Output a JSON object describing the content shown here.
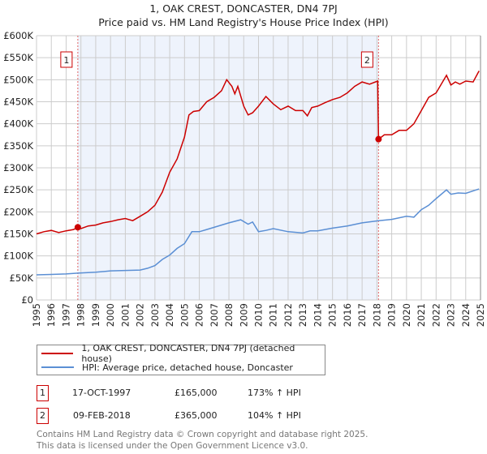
{
  "chart_data": {
    "type": "line",
    "title": "1, OAK CREST, DONCASTER, DN4 7PJ",
    "subtitle": "Price paid vs. HM Land Registry's House Price Index (HPI)",
    "xlabel": "",
    "ylabel": "",
    "xlim": [
      1995,
      2025
    ],
    "ylim": [
      0,
      600000
    ],
    "grid": true,
    "y_ticks": [
      0,
      50000,
      100000,
      150000,
      200000,
      250000,
      300000,
      350000,
      400000,
      450000,
      500000,
      550000,
      600000
    ],
    "y_tick_labels": [
      "£0",
      "£50K",
      "£100K",
      "£150K",
      "£200K",
      "£250K",
      "£300K",
      "£350K",
      "£400K",
      "£450K",
      "£500K",
      "£550K",
      "£600K"
    ],
    "x_ticks": [
      "1995",
      "1996",
      "1997",
      "1998",
      "1999",
      "2000",
      "2001",
      "2002",
      "2003",
      "2004",
      "2005",
      "2006",
      "2007",
      "2008",
      "2009",
      "2010",
      "2011",
      "2012",
      "2013",
      "2014",
      "2015",
      "2016",
      "2017",
      "2018",
      "2019",
      "2020",
      "2021",
      "2022",
      "2023",
      "2024",
      "2025"
    ],
    "shaded_range": [
      1997.79,
      2018.11
    ],
    "series": [
      {
        "name": "1, OAK CREST, DONCASTER, DN4 7PJ (detached house)",
        "color": "#cc0000",
        "x": [
          1995,
          1995.5,
          1996,
          1996.5,
          1997,
          1997.5,
          1997.79,
          1998,
          1998.5,
          1999,
          1999.5,
          2000,
          2000.5,
          2001,
          2001.5,
          2002,
          2002.5,
          2003,
          2003.5,
          2004,
          2004.5,
          2005,
          2005.3,
          2005.6,
          2006,
          2006.5,
          2007,
          2007.5,
          2007.85,
          2008.2,
          2008.4,
          2008.6,
          2009.0,
          2009.3,
          2009.6,
          2010,
          2010.5,
          2011,
          2011.5,
          2012,
          2012.5,
          2013,
          2013.3,
          2013.6,
          2014,
          2014.5,
          2015,
          2015.5,
          2016,
          2016.5,
          2017,
          2017.5,
          2018.05,
          2018.11,
          2018.5,
          2019,
          2019.5,
          2020,
          2020.5,
          2021,
          2021.5,
          2022,
          2022.7,
          2023,
          2023.3,
          2023.6,
          2024,
          2024.5,
          2024.9
        ],
        "y": [
          150000,
          155000,
          158000,
          153000,
          157000,
          160000,
          165000,
          162000,
          168000,
          170000,
          175000,
          178000,
          182000,
          185000,
          180000,
          190000,
          200000,
          215000,
          245000,
          290000,
          320000,
          370000,
          420000,
          428000,
          430000,
          450000,
          460000,
          475000,
          500000,
          485000,
          468000,
          485000,
          440000,
          420000,
          425000,
          440000,
          462000,
          445000,
          432000,
          440000,
          430000,
          430000,
          418000,
          437000,
          440000,
          448000,
          455000,
          460000,
          470000,
          485000,
          495000,
          490000,
          497000,
          365000,
          375000,
          375000,
          385000,
          385000,
          400000,
          430000,
          460000,
          470000,
          510000,
          488000,
          495000,
          490000,
          497000,
          495000,
          520000
        ]
      },
      {
        "name": "HPI: Average price, detached house, Doncaster",
        "color": "#5b8fd4",
        "x": [
          1995,
          1996,
          1997,
          1997.79,
          1999,
          2000,
          2001,
          2002,
          2002.5,
          2003,
          2003.5,
          2004,
          2004.5,
          2005,
          2005.5,
          2006,
          2006.5,
          2007,
          2007.5,
          2008,
          2008.8,
          2009.3,
          2009.6,
          2010,
          2010.5,
          2011,
          2012,
          2013,
          2013.5,
          2014,
          2015,
          2016,
          2017,
          2018.11,
          2019,
          2020,
          2020.5,
          2021,
          2021.5,
          2022,
          2022.7,
          2023,
          2023.5,
          2024,
          2024.9
        ],
        "y": [
          57000,
          58000,
          59000,
          61000,
          63000,
          66000,
          67000,
          68000,
          72000,
          78000,
          92000,
          102000,
          117000,
          128000,
          155000,
          155000,
          160000,
          165000,
          170000,
          175000,
          182000,
          172000,
          177000,
          155000,
          158000,
          162000,
          155000,
          152000,
          157000,
          157000,
          163000,
          168000,
          175000,
          180000,
          183000,
          190000,
          188000,
          205000,
          215000,
          230000,
          250000,
          240000,
          243000,
          242000,
          252000
        ]
      }
    ],
    "annotations": [
      {
        "label": "1",
        "x": 1997.79,
        "y": 165000
      },
      {
        "label": "2",
        "x": 2018.11,
        "y": 365000
      }
    ]
  },
  "legend": {
    "items": [
      "1, OAK CREST, DONCASTER, DN4 7PJ (detached house)",
      "HPI: Average price, detached house, Doncaster"
    ]
  },
  "transactions": [
    {
      "num": "1",
      "date": "17-OCT-1997",
      "price": "£165,000",
      "hpi": "173% ↑ HPI"
    },
    {
      "num": "2",
      "date": "09-FEB-2018",
      "price": "£365,000",
      "hpi": "104% ↑ HPI"
    }
  ],
  "footer": {
    "line1": "Contains HM Land Registry data © Crown copyright and database right 2025.",
    "line2": "This data is licensed under the Open Government Licence v3.0."
  }
}
